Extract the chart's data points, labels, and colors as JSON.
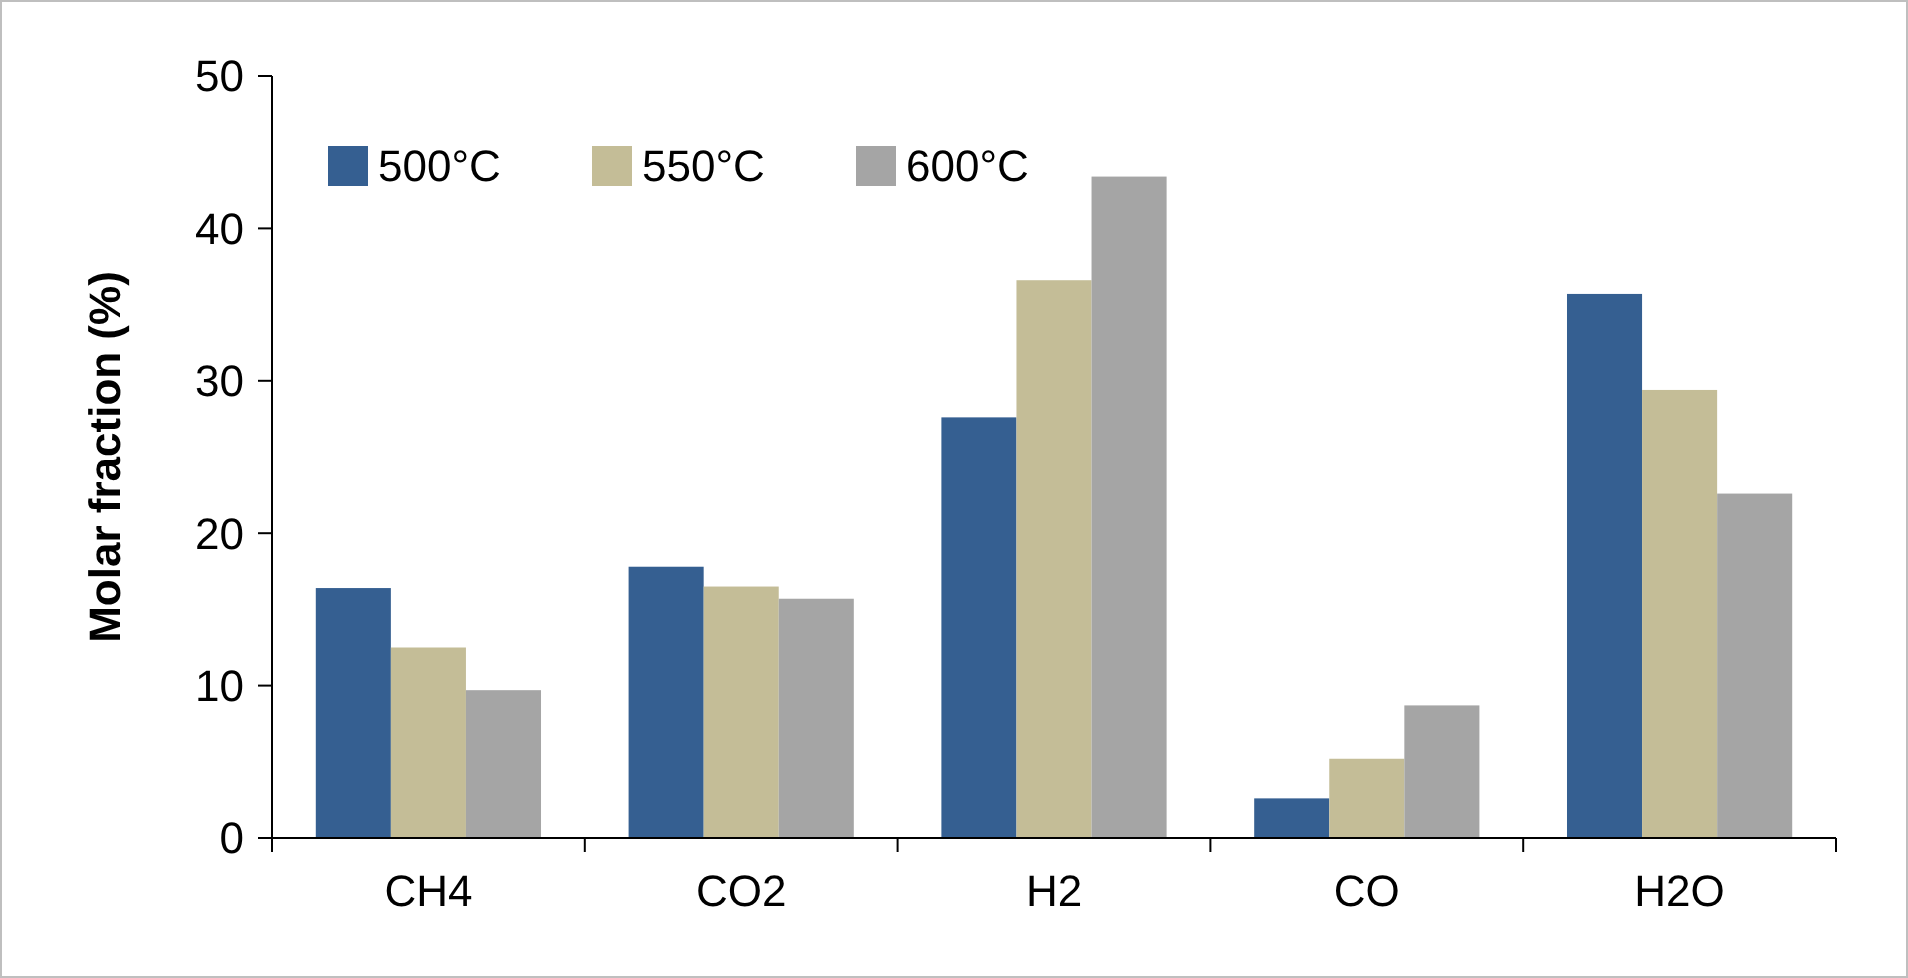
{
  "chart_data": {
    "type": "bar",
    "ylabel": "Molar fraction (%)",
    "categories": [
      "CH4",
      "CO2",
      "H2",
      "CO",
      "H2O"
    ],
    "series": [
      {
        "name": "500°C",
        "color": "#355f91",
        "values": [
          16.4,
          17.8,
          27.6,
          2.6,
          35.7
        ]
      },
      {
        "name": "550°C",
        "color": "#c4bd97",
        "values": [
          12.5,
          16.5,
          36.6,
          5.2,
          29.4
        ]
      },
      {
        "name": "600°C",
        "color": "#a5a5a5",
        "values": [
          9.7,
          15.7,
          43.4,
          8.7,
          22.6
        ]
      }
    ],
    "ylim": [
      0,
      50
    ],
    "yticks": [
      0,
      10,
      20,
      30,
      40,
      50
    ],
    "grid": false,
    "legend": "top left"
  }
}
